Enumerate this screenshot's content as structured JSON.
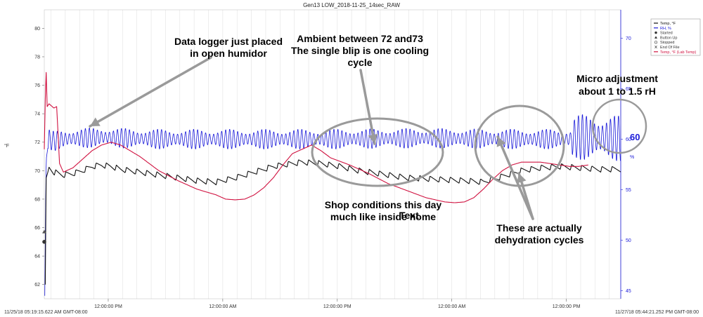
{
  "chart_data": {
    "type": "line",
    "title": "Gen13 LOW_2018-11-25_14sec_RAW",
    "xlabel": "",
    "x_start_label": "11/25/18 05:19:15.622 AM GMT-08:00",
    "x_end_label": "11/27/18 05:44:21.252 PM GMT-08:00",
    "x_tick_labels": [
      "12:00:00 PM",
      "12:00:00 AM",
      "12:00:00 PM",
      "12:00:00 AM",
      "12:00:00 PM"
    ],
    "x_range_hours": [
      0,
      60.4
    ],
    "x_tick_hours": [
      6.7,
      18.7,
      30.7,
      42.7,
      54.7
    ],
    "ylabel_left": "°F",
    "ylabel_right": "%",
    "ylim_left": [
      61,
      81.3
    ],
    "ylim_right": [
      44.2,
      72.8
    ],
    "y_ticks_left": [
      62,
      64,
      66,
      68,
      70,
      72,
      74,
      76,
      78,
      80
    ],
    "y_ticks_right": [
      45,
      50,
      55,
      60,
      65,
      70
    ],
    "series": [
      {
        "name": "Temp, °F",
        "axis": "left",
        "color": "#111111",
        "sawtooth": {
          "period_hours": 1.06,
          "amplitude": 0.4
        },
        "values": [
          [
            0.1,
            62
          ],
          [
            0.2,
            69.5
          ],
          [
            0.5,
            70.2
          ],
          [
            1,
            69.9
          ],
          [
            2,
            69.7
          ],
          [
            3,
            69.8
          ],
          [
            4,
            70
          ],
          [
            5,
            70.3
          ],
          [
            6,
            70.4
          ],
          [
            7,
            70.3
          ],
          [
            8,
            70.1
          ],
          [
            9,
            70.0
          ],
          [
            10,
            69.9
          ],
          [
            11,
            69.8
          ],
          [
            12,
            69.7
          ],
          [
            14,
            69.5
          ],
          [
            16,
            69.3
          ],
          [
            18,
            69.2
          ],
          [
            20,
            69.5
          ],
          [
            22,
            69.9
          ],
          [
            24,
            70.3
          ],
          [
            26,
            70.5
          ],
          [
            27,
            70.6
          ],
          [
            29,
            70.5
          ],
          [
            31,
            70.3
          ],
          [
            33,
            70.0
          ],
          [
            35,
            69.8
          ],
          [
            38,
            69.5
          ],
          [
            41,
            69.4
          ],
          [
            44,
            69.3
          ],
          [
            46,
            69.2
          ],
          [
            48,
            69.6
          ],
          [
            50,
            70.0
          ],
          [
            52,
            70.2
          ],
          [
            54,
            70.3
          ],
          [
            56,
            70.2
          ],
          [
            58,
            70.1
          ],
          [
            60.4,
            70.1
          ]
        ]
      },
      {
        "name": "RH, %",
        "axis": "right",
        "color": "#1a1ad9",
        "oscillation": {
          "period_hours": 0.42,
          "amplitude": 1.0
        },
        "values": [
          [
            0.05,
            44.5
          ],
          [
            0.1,
            50
          ],
          [
            0.2,
            58
          ],
          [
            0.5,
            60
          ],
          [
            1,
            59.8
          ],
          [
            2,
            60
          ],
          [
            4,
            60.1
          ],
          [
            6,
            60.2
          ],
          [
            8,
            60.1
          ],
          [
            12,
            60.0
          ],
          [
            20,
            60.0
          ],
          [
            30,
            60.0
          ],
          [
            40,
            60.1
          ],
          [
            50,
            60.0
          ],
          [
            55,
            60.0
          ],
          [
            56,
            60.2
          ],
          [
            60,
            60.1
          ],
          [
            60.4,
            60.0
          ]
        ]
      },
      {
        "name": "Temp, °F (Lab Temp)",
        "axis": "left",
        "color": "#d01240",
        "values": [
          [
            0,
            71.5
          ],
          [
            0.1,
            75.0
          ],
          [
            0.2,
            76.9
          ],
          [
            0.3,
            74.5
          ],
          [
            0.5,
            74.7
          ],
          [
            1,
            74.4
          ],
          [
            1.3,
            74.5
          ],
          [
            1.6,
            70.5
          ],
          [
            2,
            69.9
          ],
          [
            3,
            70.2
          ],
          [
            4,
            70.8
          ],
          [
            5,
            71.4
          ],
          [
            6,
            71.8
          ],
          [
            7,
            72.0
          ],
          [
            8,
            71.8
          ],
          [
            9,
            71.4
          ],
          [
            10,
            71.0
          ],
          [
            11,
            70.5
          ],
          [
            12,
            70.0
          ],
          [
            14,
            69.3
          ],
          [
            16,
            68.7
          ],
          [
            18,
            68.3
          ],
          [
            19,
            68.0
          ],
          [
            20,
            67.95
          ],
          [
            21,
            68.0
          ],
          [
            22,
            68.3
          ],
          [
            23,
            68.8
          ],
          [
            24,
            69.5
          ],
          [
            25,
            70.4
          ],
          [
            26,
            71.2
          ],
          [
            27,
            71.5
          ],
          [
            28,
            71.8
          ],
          [
            29,
            71.4
          ],
          [
            30,
            70.9
          ],
          [
            32,
            70.4
          ],
          [
            34,
            69.8
          ],
          [
            36,
            69.1
          ],
          [
            38,
            68.6
          ],
          [
            40,
            68.1
          ],
          [
            42,
            67.8
          ],
          [
            43,
            67.75
          ],
          [
            44,
            67.8
          ],
          [
            45,
            68.1
          ],
          [
            46,
            68.7
          ],
          [
            47,
            69.4
          ],
          [
            48,
            70.0
          ],
          [
            49,
            70.4
          ],
          [
            50,
            70.6
          ],
          [
            52,
            70.6
          ],
          [
            53,
            70.5
          ],
          [
            54,
            70.4
          ],
          [
            55,
            70.3
          ],
          [
            56,
            70.3
          ],
          [
            57,
            70.4
          ]
        ]
      }
    ],
    "markers": [
      {
        "name": "Started",
        "x": 0,
        "y": 65.0,
        "shape": "circle"
      },
      {
        "name": "Button Up",
        "x": 0,
        "y": 65.7,
        "shape": "triangle"
      }
    ],
    "legend": {
      "placement": "top-right",
      "entries": [
        {
          "label": "Temp, °F",
          "color": "#111111",
          "symbol": "line"
        },
        {
          "label": "RH, %",
          "color": "#1a1ad9",
          "symbol": "line"
        },
        {
          "label": "Started",
          "color": "#333333",
          "symbol": "dot"
        },
        {
          "label": "Button Up",
          "color": "#333333",
          "symbol": "tri"
        },
        {
          "label": "Stopped",
          "color": "#333333",
          "symbol": "circle"
        },
        {
          "label": "End Of File",
          "color": "#333333",
          "symbol": "x"
        },
        {
          "label": "Temp, °F (Lab Temp)",
          "color": "#d01240",
          "symbol": "line"
        }
      ]
    },
    "annotations": [
      {
        "name": "data-logger",
        "lines": [
          "Data logger just placed",
          "in open humidor"
        ]
      },
      {
        "name": "ambient",
        "lines": [
          "Ambient between 72 and73",
          "The single blip is one cooling",
          "cycle"
        ]
      },
      {
        "name": "micro-adjust",
        "lines": [
          "Micro adjustment",
          "about 1 to 1.5 rH"
        ]
      },
      {
        "name": "shop",
        "lines": [
          "Shop conditions this day",
          "much like inside home"
        ]
      },
      {
        "name": "dehydration",
        "lines": [
          "These are actually",
          "dehydration cycles"
        ]
      }
    ],
    "stray_text": "Text",
    "circle_badge_value": "60",
    "grid": true
  }
}
